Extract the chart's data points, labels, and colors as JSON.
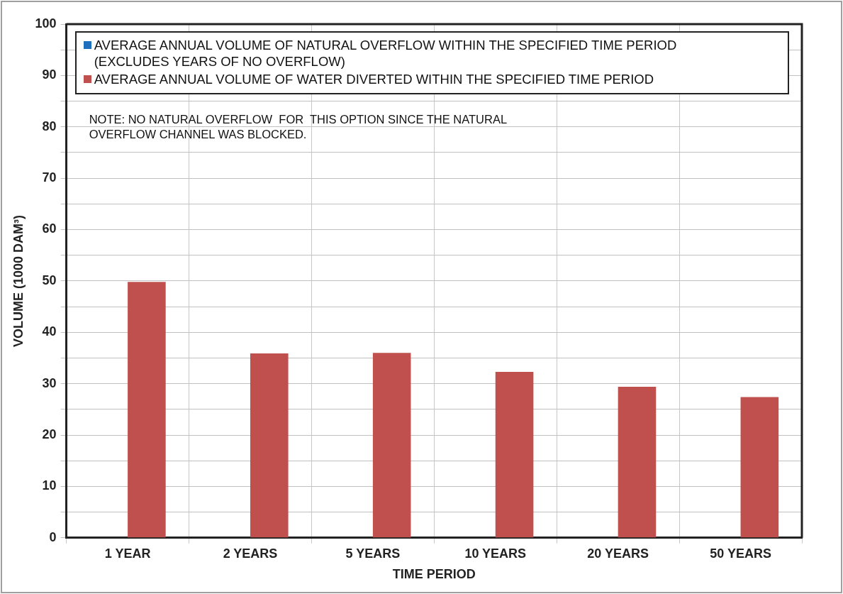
{
  "chart_data": {
    "type": "bar",
    "xlabel": "TIME PERIOD",
    "ylabel": "VOLUME (1000 DAM³)",
    "categories": [
      "1 YEAR",
      "2 YEARS",
      "5 YEARS",
      "10 YEARS",
      "20 YEARS",
      "50 YEARS"
    ],
    "series": [
      {
        "name": "AVERAGE ANNUAL VOLUME OF NATURAL OVERFLOW WITHIN THE SPECIFIED TIME PERIOD (EXCLUDES YEARS OF NO OVERFLOW)",
        "color": "#1f6fbf",
        "values": [
          0,
          0,
          0,
          0,
          0,
          0
        ]
      },
      {
        "name": "AVERAGE ANNUAL VOLUME OF WATER DIVERTED WITHIN THE SPECIFIED TIME PERIOD",
        "color": "#c0504d",
        "values": [
          49.8,
          35.9,
          36.0,
          32.3,
          29.4,
          27.4
        ]
      }
    ],
    "ylim": [
      0,
      100
    ],
    "yticks": [
      0,
      {
        "value": 5,
        "label": null
      },
      10,
      {
        "value": 15,
        "label": null
      },
      20,
      {
        "value": 25,
        "label": null
      },
      30,
      {
        "value": 35,
        "label": null
      },
      40,
      {
        "value": 45,
        "label": null
      },
      50,
      {
        "value": 55,
        "label": null
      },
      60,
      {
        "value": 65,
        "label": null
      },
      70,
      {
        "value": 75,
        "label": null
      },
      80,
      {
        "value": 85,
        "label": null
      },
      90,
      {
        "value": 95,
        "label": null
      },
      100
    ],
    "grid": true,
    "legend": "top",
    "annotations": [
      "NOTE: NO NATURAL OVERFLOW  FOR  THIS OPTION SINCE THE NATURAL OVERFLOW CHANNEL WAS BLOCKED."
    ]
  }
}
